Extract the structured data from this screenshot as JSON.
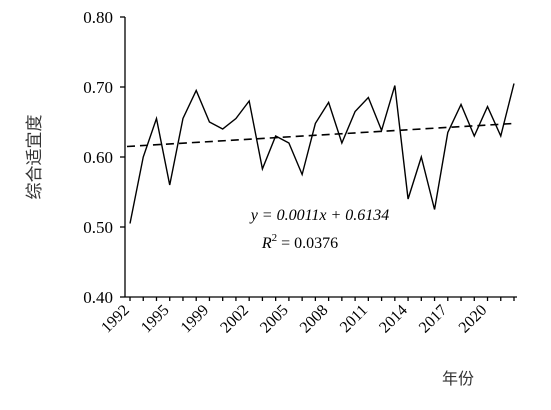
{
  "chart_data": {
    "type": "line",
    "categories": [
      "1992",
      null,
      null,
      "1995",
      null,
      null,
      "1999",
      null,
      null,
      "2002",
      null,
      null,
      "2005",
      null,
      null,
      "2008",
      null,
      null,
      "2011",
      null,
      null,
      "2014",
      null,
      null,
      "2017",
      null,
      null,
      "2020",
      null,
      null
    ],
    "series": [
      {
        "color": "#000000",
        "values": [
          0.505,
          0.6,
          0.655,
          0.56,
          0.655,
          0.695,
          0.65,
          0.64,
          0.655,
          0.68,
          0.583,
          0.63,
          0.62,
          0.575,
          0.648,
          0.678,
          0.62,
          0.665,
          0.685,
          0.638,
          0.702,
          0.54,
          0.6,
          0.525,
          0.635,
          0.675,
          0.63,
          0.672,
          0.63,
          0.705
        ]
      }
    ],
    "trendline": {
      "values": [
        0.615,
        0.648
      ],
      "equation": "y = 0.0011x + 0.6134",
      "r2_label": "R",
      "r2_sup": "2",
      "r2_value": " = 0.0376"
    },
    "ylim": [
      0.4,
      0.8
    ],
    "yticks": [
      {
        "value": 0.4,
        "label": "0.40"
      },
      {
        "value": 0.5,
        "label": "0.50"
      },
      {
        "value": 0.6,
        "label": "0.60"
      },
      {
        "value": 0.7,
        "label": "0.70"
      },
      {
        "value": 0.8,
        "label": "0.80"
      }
    ],
    "ylabel": "综合适宜度",
    "xlabel": "年份",
    "grid": false
  }
}
